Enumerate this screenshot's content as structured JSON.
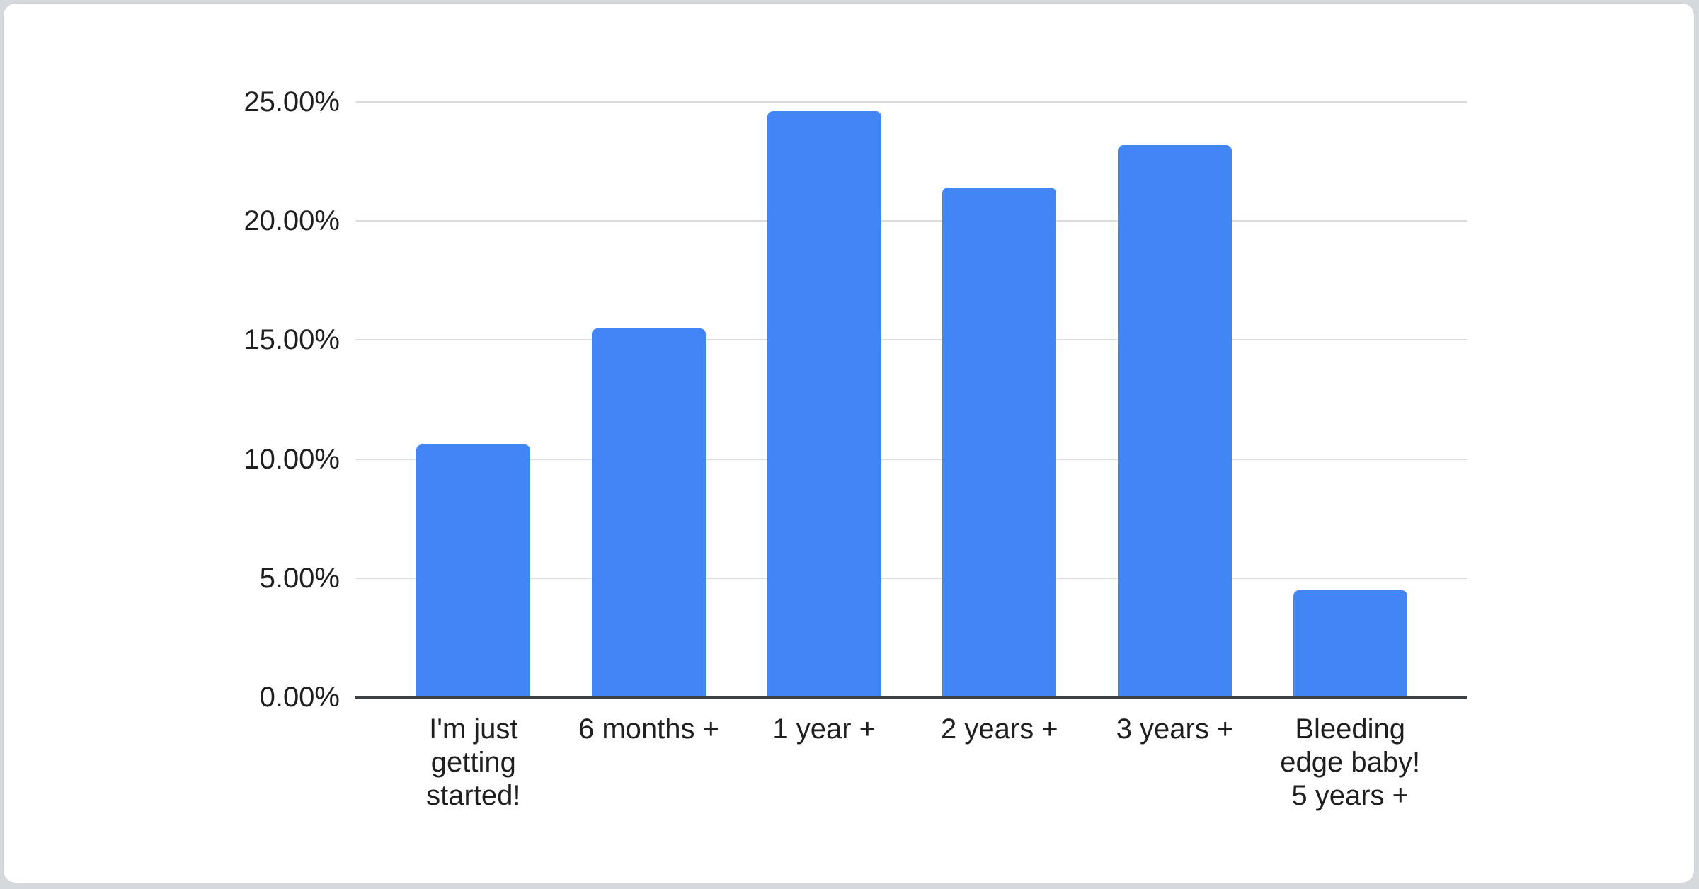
{
  "colors": {
    "bar": "#4285f4",
    "gridline": "#dadce0",
    "axis_line": "#3c4043",
    "text": "#1f1f1f",
    "card_background": "#ffffff",
    "page_background": "#d6d9dc"
  },
  "chart_data": {
    "type": "bar",
    "title": "",
    "categories": [
      "I'm just getting started!",
      "6 months +",
      "1 year +",
      "2 years +",
      "3 years +",
      "Bleeding edge baby! 5 years +"
    ],
    "categories_display": [
      "I'm just\ngetting\nstarted!",
      "6 months +",
      "1 year +",
      "2 years +",
      "3 years +",
      "Bleeding\nedge baby!\n5 years +"
    ],
    "values": [
      10.6,
      15.5,
      24.6,
      21.4,
      23.2,
      4.5
    ],
    "unit": "%",
    "ylim": [
      0,
      25
    ],
    "y_ticks": [
      {
        "value": 0,
        "label": "0.00%"
      },
      {
        "value": 5,
        "label": "5.00%"
      },
      {
        "value": 10,
        "label": "10.00%"
      },
      {
        "value": 15,
        "label": "15.00%"
      },
      {
        "value": 20,
        "label": "20.00%"
      },
      {
        "value": 25,
        "label": "25.00%"
      }
    ],
    "grid": true,
    "legend": "none",
    "bar_color": "#4285f4"
  }
}
